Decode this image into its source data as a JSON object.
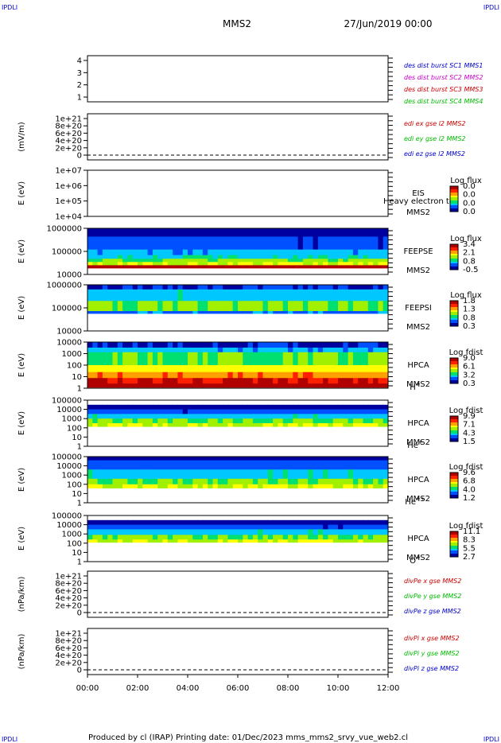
{
  "header": {
    "corner_left": "IPDLI",
    "corner_right": "IPDLI",
    "title": "MMS2",
    "datetime": "27/Jun/2019 00:00"
  },
  "footer": {
    "text": "Produced by cl (IRAP)   Printing date: 01/Dec/2023   mms_mms2_srvy_vue_web2.cl",
    "corner_left": "IPDLI",
    "corner_right": "IPDLI"
  },
  "colors": {
    "blue": "#0000cc",
    "magenta": "#cc00cc",
    "red": "#cc0000",
    "green": "#00bb00",
    "spectrogram_scale": [
      "#0000a0",
      "#0050ff",
      "#00c8ff",
      "#00e070",
      "#a0f000",
      "#ffff00",
      "#ffa000",
      "#ff2000",
      "#b00000"
    ]
  },
  "chart_data": {
    "type": "heatmap",
    "x_ticks": [
      "00:00",
      "02:00",
      "04:00",
      "06:00",
      "08:00",
      "10:00",
      "12:00"
    ],
    "panels": [
      {
        "kind": "line",
        "y_ticks": [
          "4",
          "3",
          "2",
          "1"
        ],
        "ylabel": "",
        "legend": [
          {
            "text": "des dist burst SC1 MMS1",
            "color": "#0000cc"
          },
          {
            "text": "des dist burst SC2 MMS2",
            "color": "#cc00cc"
          },
          {
            "text": "des dist burst SC3 MMS3",
            "color": "#cc0000"
          },
          {
            "text": "des dist burst SC4 MMS4",
            "color": "#00bb00"
          }
        ]
      },
      {
        "kind": "line",
        "y_ticks": [
          "1e+21",
          "8e+20",
          "6e+20",
          "4e+20",
          "2e+20",
          "0"
        ],
        "ylabel": "(mV/m)",
        "legend": [
          {
            "text": "edi ex gse l2 MMS2",
            "color": "#cc0000"
          },
          {
            "text": "edi ey gse l2 MMS2",
            "color": "#00bb00"
          },
          {
            "text": "edi ez gse l2 MMS2",
            "color": "#0000cc"
          }
        ]
      },
      {
        "kind": "spec",
        "y_ticks": [
          "1e+07",
          "1e+06",
          "1e+05",
          "1e+04"
        ],
        "ylabel": "E (eV)",
        "instrument": "EIS",
        "overlay": "Heavy electron to",
        "spacecraft": "MMS2",
        "species": "",
        "cbar_title": "Log flux",
        "cbar_values": [
          "0.0",
          "0.0",
          "0.0",
          "0.0"
        ],
        "bands": []
      },
      {
        "kind": "spec",
        "y_ticks": [
          "1000000",
          "100000",
          "10000"
        ],
        "ylabel": "E (eV)",
        "instrument": "FEEPSE",
        "spacecraft": "MMS2",
        "species": "",
        "cbar_title": "Log flux",
        "cbar_values": [
          "3.4",
          "2.1",
          "0.8",
          "-0.5"
        ],
        "bands": [
          {
            "from": 0.0,
            "to": 0.18,
            "level": 0.05
          },
          {
            "from": 0.18,
            "to": 0.46,
            "level": 0.15
          },
          {
            "from": 0.46,
            "to": 0.58,
            "level": 0.25
          },
          {
            "from": 0.58,
            "to": 0.66,
            "level": 0.32
          },
          {
            "from": 0.66,
            "to": 0.73,
            "level": 0.45
          },
          {
            "from": 0.73,
            "to": 0.8,
            "level": 0.55
          },
          {
            "from": 0.8,
            "to": 0.86,
            "level": 0.95
          }
        ]
      },
      {
        "kind": "spec",
        "y_ticks": [
          "1000000",
          "100000",
          "10000"
        ],
        "ylabel": "E (eV)",
        "instrument": "FEEPSI",
        "spacecraft": "MMS2",
        "species": "",
        "cbar_title": "Log flux",
        "cbar_values": [
          "1.8",
          "1.3",
          "0.8",
          "0.3"
        ],
        "bands": [
          {
            "from": 0.0,
            "to": 0.1,
            "level": 0.1
          },
          {
            "from": 0.1,
            "to": 0.35,
            "level": 0.3
          },
          {
            "from": 0.35,
            "to": 0.57,
            "level": 0.45
          },
          {
            "from": 0.57,
            "to": 0.62,
            "level": 0.2
          }
        ]
      },
      {
        "kind": "spec",
        "y_ticks": [
          "10000",
          "1000",
          "100",
          "10",
          "1"
        ],
        "ylabel": "E (eV)",
        "instrument": "HPCA",
        "spacecraft": "MMS2",
        "species": "H",
        "species_sup": "+",
        "cbar_title": "Log fdist",
        "cbar_values": [
          "9.0",
          "6.1",
          "3.2",
          "0.3"
        ],
        "bands": [
          {
            "from": 0.0,
            "to": 0.12,
            "level": 0.1
          },
          {
            "from": 0.12,
            "to": 0.22,
            "level": 0.25
          },
          {
            "from": 0.22,
            "to": 0.5,
            "level": 0.45
          },
          {
            "from": 0.5,
            "to": 0.65,
            "level": 0.6
          },
          {
            "from": 0.65,
            "to": 0.78,
            "level": 0.75
          },
          {
            "from": 0.78,
            "to": 0.9,
            "level": 0.88
          },
          {
            "from": 0.9,
            "to": 0.98,
            "level": 0.95
          }
        ]
      },
      {
        "kind": "spec",
        "y_ticks": [
          "100000",
          "10000",
          "1000",
          "100",
          "10",
          "1"
        ],
        "ylabel": "E (eV)",
        "instrument": "HPCA",
        "spacecraft": "MMS2",
        "species": "He",
        "species_sup": "+",
        "cbar_title": "Log fdist",
        "cbar_values": [
          "9.9",
          "7.1",
          "4.3",
          "1.5"
        ],
        "bands": [
          {
            "from": 0.1,
            "to": 0.2,
            "level": 0.05
          },
          {
            "from": 0.2,
            "to": 0.3,
            "level": 0.15
          },
          {
            "from": 0.3,
            "to": 0.4,
            "level": 0.3
          },
          {
            "from": 0.4,
            "to": 0.5,
            "level": 0.45
          },
          {
            "from": 0.5,
            "to": 0.57,
            "level": 0.55
          }
        ]
      },
      {
        "kind": "spec",
        "y_ticks": [
          "100000",
          "10000",
          "1000",
          "100",
          "10",
          "1"
        ],
        "ylabel": "E (eV)",
        "instrument": "HPCA",
        "spacecraft": "MMS2",
        "species": "He",
        "species_sup": "++",
        "cbar_title": "Log fdist",
        "cbar_values": [
          "9.6",
          "6.8",
          "4.0",
          "1.2"
        ],
        "bands": [
          {
            "from": 0.0,
            "to": 0.08,
            "level": 0.05
          },
          {
            "from": 0.08,
            "to": 0.28,
            "level": 0.15
          },
          {
            "from": 0.28,
            "to": 0.48,
            "level": 0.3
          },
          {
            "from": 0.48,
            "to": 0.6,
            "level": 0.45
          },
          {
            "from": 0.6,
            "to": 0.68,
            "level": 0.55
          }
        ]
      },
      {
        "kind": "spec",
        "y_ticks": [
          "100000",
          "10000",
          "1000",
          "100",
          "10",
          "1"
        ],
        "ylabel": "E (eV)",
        "instrument": "HPCA",
        "spacecraft": "MMS2",
        "species": "O",
        "species_sup": "+",
        "cbar_title": "Log fdist",
        "cbar_values": [
          "11.1",
          "8.3",
          "5.5",
          "2.7"
        ],
        "bands": [
          {
            "from": 0.1,
            "to": 0.2,
            "level": 0.05
          },
          {
            "from": 0.2,
            "to": 0.3,
            "level": 0.15
          },
          {
            "from": 0.3,
            "to": 0.42,
            "level": 0.3
          },
          {
            "from": 0.42,
            "to": 0.52,
            "level": 0.45
          },
          {
            "from": 0.52,
            "to": 0.58,
            "level": 0.55
          }
        ]
      },
      {
        "kind": "line",
        "y_ticks": [
          "1e+21",
          "8e+20",
          "6e+20",
          "4e+20",
          "2e+20",
          "0"
        ],
        "ylabel": "(nPa/km)",
        "legend": [
          {
            "text": "divPe x gse MMS2",
            "color": "#cc0000"
          },
          {
            "text": "divPe y gse MMS2",
            "color": "#00bb00"
          },
          {
            "text": "divPe z gse MMS2",
            "color": "#0000cc"
          }
        ]
      },
      {
        "kind": "line",
        "y_ticks": [
          "1e+21",
          "8e+20",
          "6e+20",
          "4e+20",
          "2e+20",
          "0"
        ],
        "ylabel": "(nPa/km)",
        "legend": [
          {
            "text": "divPi x gse MMS2",
            "color": "#cc0000"
          },
          {
            "text": "divPi y gse MMS2",
            "color": "#00bb00"
          },
          {
            "text": "divPi z gse MMS2",
            "color": "#0000cc"
          }
        ]
      }
    ]
  }
}
